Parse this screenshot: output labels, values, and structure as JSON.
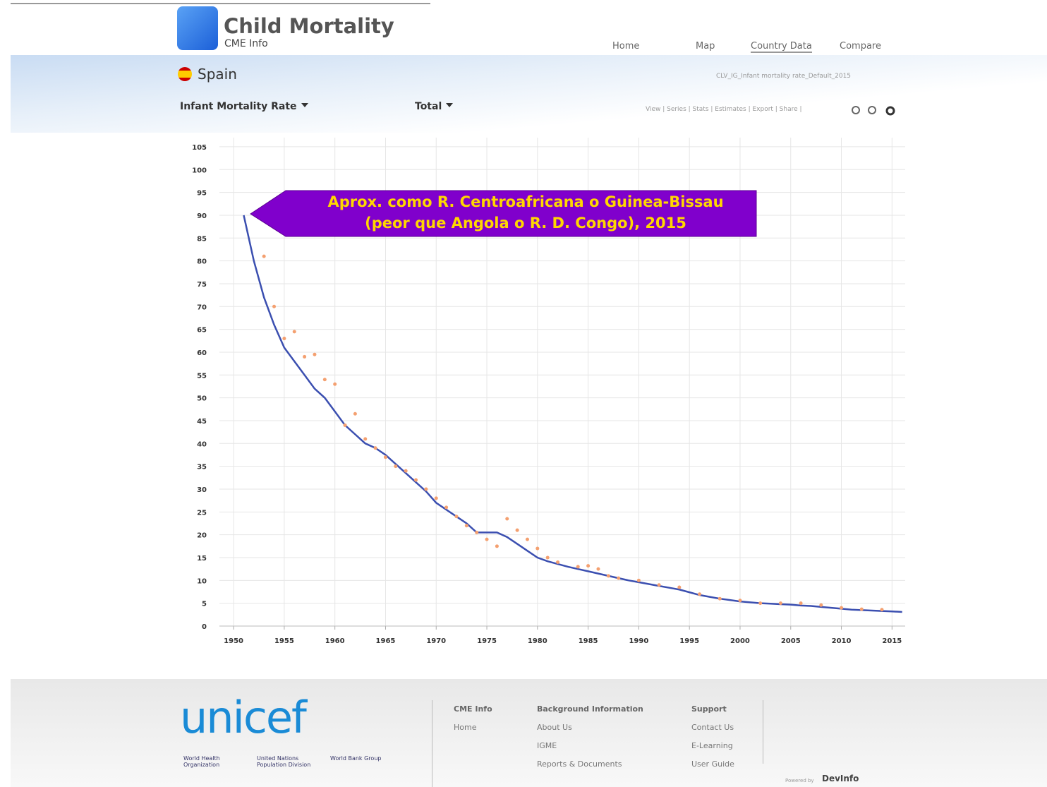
{
  "header": {
    "title": "Child Mortality",
    "subtitle": "CME Info",
    "nav": [
      "Home",
      "Map",
      "Country Data",
      "Compare"
    ]
  },
  "country": "Spain",
  "indicator_path": "CLV_IG_Infant mortality rate_Default_2015",
  "controls": {
    "indicator": "Infant Mortality Rate",
    "breakdown": "Total",
    "toolbar": "View | Series | Stats | Estimates | Export | Share |"
  },
  "chart_data": {
    "type": "line",
    "annotation": [
      "Aprox. como R. Centroafricana o Guinea-Bissau",
      "(peor que Angola o R. D. Congo), 2015"
    ],
    "xlim": [
      1948.6,
      2016.3
    ],
    "xticks": [
      1950,
      1955,
      1960,
      1965,
      1970,
      1975,
      1980,
      1985,
      1990,
      1995,
      2000,
      2005,
      2010,
      2015
    ],
    "ylim": [
      0,
      107
    ],
    "yticks": [
      0,
      5,
      10,
      15,
      20,
      25,
      30,
      35,
      40,
      45,
      50,
      55,
      60,
      65,
      70,
      75,
      80,
      85,
      90,
      95,
      100,
      105
    ],
    "grid": true,
    "series": [
      {
        "color": "#3b4fb0",
        "style": "line",
        "x": [
          1951,
          1952,
          1953,
          1954,
          1955,
          1956,
          1957,
          1958,
          1959,
          1960,
          1961,
          1962,
          1963,
          1964,
          1965,
          1966,
          1967,
          1968,
          1969,
          1970,
          1971,
          1972,
          1973,
          1974,
          1975,
          1976,
          1977,
          1978,
          1979,
          1980,
          1981,
          1982,
          1983,
          1984,
          1985,
          1986,
          1987,
          1988,
          1989,
          1990,
          1991,
          1992,
          1993,
          1994,
          1995,
          1996,
          1997,
          1998,
          1999,
          2000,
          2001,
          2002,
          2003,
          2004,
          2005,
          2006,
          2007,
          2008,
          2009,
          2010,
          2011,
          2012,
          2013,
          2014,
          2015,
          2016
        ],
        "values": [
          90,
          80,
          72,
          66,
          61,
          58,
          55,
          52,
          50,
          47,
          44,
          42,
          40,
          39,
          37.5,
          35.5,
          33.5,
          31.5,
          29.5,
          27,
          25.5,
          24,
          22.5,
          20.5,
          20.5,
          20.5,
          19.5,
          18,
          16.5,
          15,
          14.2,
          13.6,
          13,
          12.5,
          12,
          11.5,
          11,
          10.5,
          10,
          9.6,
          9.2,
          8.8,
          8.4,
          8,
          7.4,
          6.8,
          6.4,
          6,
          5.7,
          5.4,
          5.2,
          5,
          4.9,
          4.8,
          4.7,
          4.5,
          4.4,
          4.2,
          4,
          3.8,
          3.6,
          3.5,
          3.4,
          3.3,
          3.2,
          3.1
        ]
      },
      {
        "color": "#f4a070",
        "style": "points",
        "x": [
          1953,
          1954,
          1955,
          1956,
          1957,
          1958,
          1959,
          1960,
          1961,
          1962,
          1963,
          1964,
          1965,
          1966,
          1967,
          1968,
          1969,
          1970,
          1971,
          1972,
          1973,
          1974,
          1975,
          1976,
          1977,
          1978,
          1979,
          1980,
          1981,
          1982,
          1984,
          1985,
          1986,
          1987,
          1988,
          1990,
          1992,
          1994,
          1996,
          1998,
          2000,
          2002,
          2004,
          2006,
          2008,
          2010,
          2012,
          2014
        ],
        "values": [
          81,
          70,
          63,
          64.5,
          59,
          59.5,
          54,
          53,
          44,
          46.5,
          41,
          39,
          37,
          35,
          34,
          32,
          30,
          28,
          26,
          24,
          22,
          20.5,
          19,
          17.5,
          23.5,
          21,
          19,
          17,
          15,
          14,
          13,
          13.2,
          12.5,
          11,
          10.5,
          10,
          9,
          8.5,
          7,
          6,
          5.6,
          5,
          5,
          5,
          4.6,
          4,
          3.7,
          3.6
        ]
      }
    ]
  },
  "footer": {
    "brand": "unicef",
    "partners": [
      "World Health Organization",
      "United Nations Population Division",
      "World Bank Group"
    ],
    "columns": [
      {
        "title": "CME Info",
        "links": [
          "Home"
        ]
      },
      {
        "title": "Background Information",
        "links": [
          "About Us",
          "IGME",
          "Reports & Documents"
        ]
      },
      {
        "title": "Support",
        "links": [
          "Contact Us",
          "E-Learning",
          "User Guide"
        ]
      }
    ],
    "powered": "Powered by",
    "powered_brand": "DevInfo"
  }
}
